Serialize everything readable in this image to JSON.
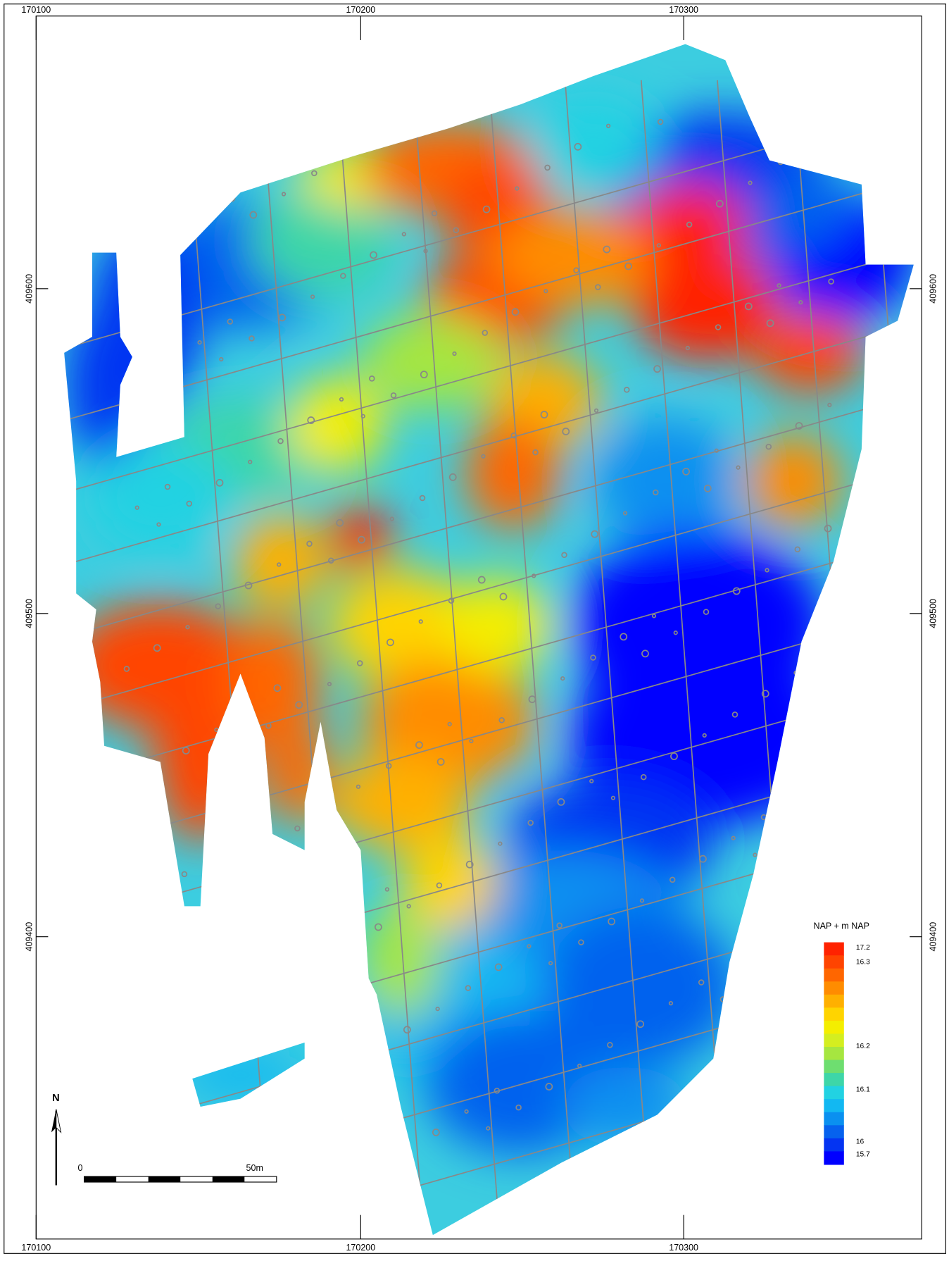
{
  "grid": {
    "x_labels": [
      "170100",
      "170200",
      "170300"
    ],
    "y_labels": [
      "409600",
      "409500",
      "409400"
    ]
  },
  "legend": {
    "title": "NAP + m NAP",
    "colors": [
      "#ff2200",
      "#ff4400",
      "#ff6600",
      "#ff8c00",
      "#ffb000",
      "#ffd400",
      "#f4ee00",
      "#d4ee20",
      "#a6e640",
      "#6ede70",
      "#3ed6a8",
      "#22d2e2",
      "#12b8f2",
      "#0a90f0",
      "#0662ee",
      "#0434f2",
      "#0000ff"
    ],
    "labels": [
      "17.2",
      "16.3",
      "16.2",
      "16.1",
      "16",
      "15.7"
    ]
  },
  "north": "N",
  "scale_bar": {
    "start": "0",
    "end": "50m"
  }
}
